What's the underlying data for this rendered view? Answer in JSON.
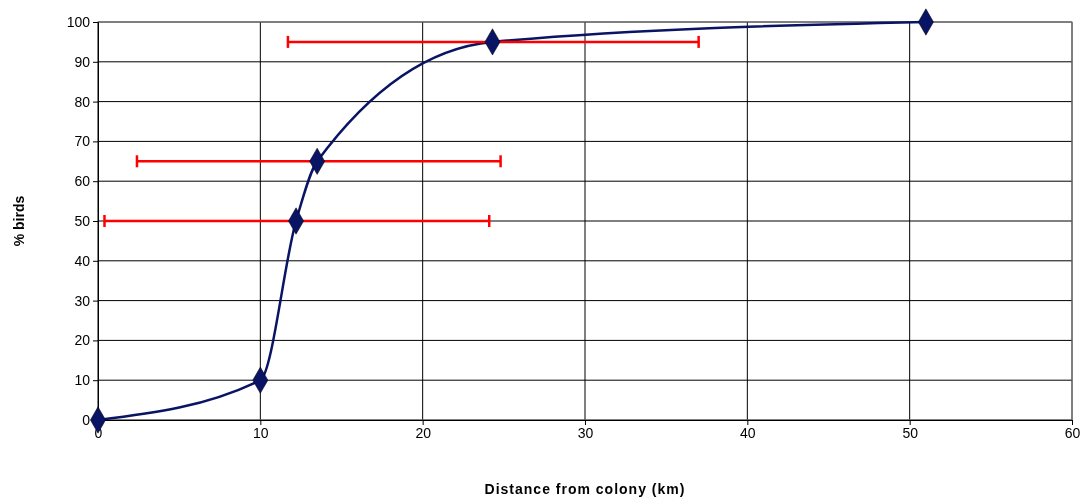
{
  "chart_data": {
    "type": "line",
    "xlabel": "Distance from colony (km)",
    "ylabel": "% birds",
    "x": [
      0,
      10,
      12.2,
      13.5,
      24.3,
      51
    ],
    "series": [
      {
        "color": "#0a1464",
        "values": [
          0,
          10,
          50,
          65,
          95,
          100
        ],
        "xerrors": [
          null,
          null,
          [
            0.4,
            24.1
          ],
          [
            2.4,
            24.8
          ],
          [
            11.7,
            37
          ],
          null
        ]
      }
    ],
    "xlim": [
      0,
      60
    ],
    "xticks": [
      0,
      10,
      20,
      30,
      40,
      50,
      60
    ],
    "ylim": [
      0,
      100
    ],
    "yticks": [
      0,
      10,
      20,
      30,
      40,
      50,
      60,
      70,
      80,
      90,
      100
    ],
    "grid": true,
    "marker": "diamond",
    "line_style": "solid"
  }
}
